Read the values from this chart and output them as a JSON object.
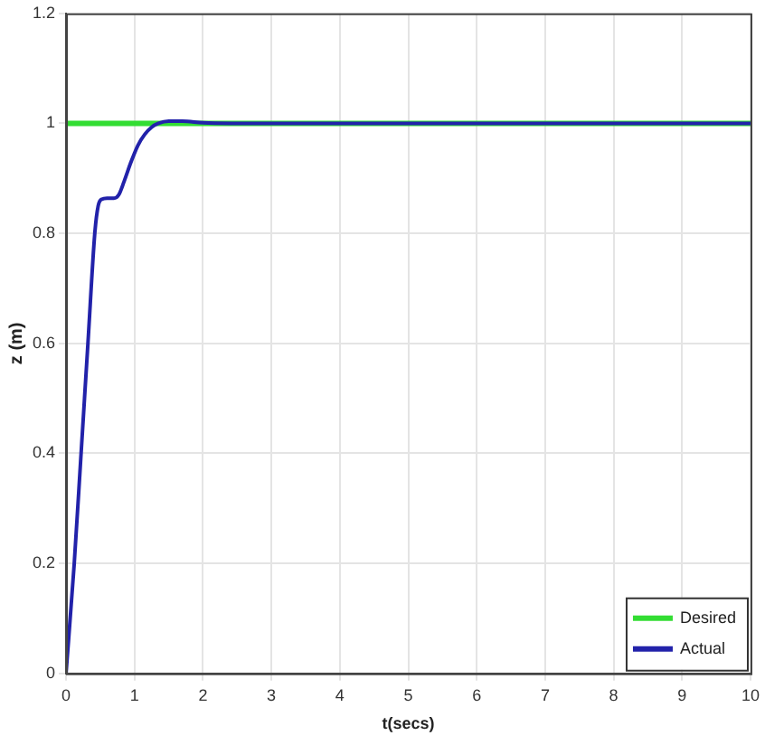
{
  "chart_data": {
    "type": "line",
    "xlabel": "t(secs)",
    "ylabel": "z (m)",
    "xlim": [
      0,
      10
    ],
    "xticks": [
      0,
      1,
      2,
      3,
      4,
      5,
      6,
      7,
      8,
      9,
      10
    ],
    "ylim": [
      0,
      1.2
    ],
    "yticks": [
      0,
      0.2,
      0.4,
      0.6,
      0.8,
      1,
      1.2
    ],
    "series": [
      {
        "name": "Desired",
        "color": "#33dd33",
        "x": [
          0,
          10
        ],
        "values": [
          1,
          1
        ]
      },
      {
        "name": "Actual",
        "color": "#2222aa",
        "x": [
          0,
          0.12,
          0.22,
          0.32,
          0.42,
          0.47,
          0.52,
          0.6,
          0.7,
          0.77,
          0.85,
          0.95,
          1.05,
          1.15,
          1.25,
          1.35,
          1.5,
          1.7,
          2.0,
          2.5,
          10
        ],
        "values": [
          0,
          0.2,
          0.4,
          0.6,
          0.8,
          0.85,
          0.862,
          0.864,
          0.864,
          0.87,
          0.895,
          0.93,
          0.96,
          0.98,
          0.993,
          1.0,
          1.004,
          1.004,
          1.001,
          1.0,
          1.0
        ]
      }
    ],
    "grid": true,
    "legend": "bottom right",
    "marker": "none",
    "line_style": "solid"
  }
}
